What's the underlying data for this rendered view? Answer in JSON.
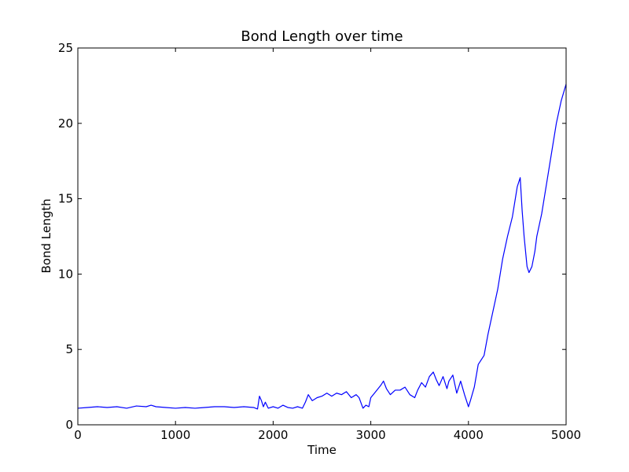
{
  "chart_data": {
    "type": "line",
    "title": "Bond Length over time",
    "xlabel": "Time",
    "ylabel": "Bond Length",
    "xlim": [
      0,
      5000
    ],
    "ylim": [
      0,
      25
    ],
    "xticks": [
      0,
      1000,
      2000,
      3000,
      4000,
      5000
    ],
    "yticks": [
      0,
      5,
      10,
      15,
      20,
      25
    ],
    "grid": false,
    "series": [
      {
        "color": "#0000ff",
        "x": [
          0,
          100,
          200,
          300,
          400,
          500,
          600,
          700,
          750,
          800,
          900,
          1000,
          1100,
          1200,
          1300,
          1400,
          1500,
          1600,
          1700,
          1800,
          1840,
          1860,
          1880,
          1900,
          1920,
          1950,
          2000,
          2050,
          2100,
          2150,
          2200,
          2250,
          2300,
          2330,
          2360,
          2400,
          2450,
          2500,
          2550,
          2600,
          2650,
          2700,
          2750,
          2800,
          2850,
          2880,
          2920,
          2950,
          2980,
          3000,
          3050,
          3100,
          3130,
          3160,
          3200,
          3250,
          3300,
          3350,
          3400,
          3450,
          3480,
          3520,
          3560,
          3600,
          3640,
          3670,
          3700,
          3740,
          3780,
          3800,
          3840,
          3880,
          3920,
          3960,
          4000,
          4020,
          4060,
          4100,
          4130,
          4160,
          4200,
          4250,
          4300,
          4350,
          4400,
          4450,
          4500,
          4530,
          4550,
          4570,
          4600,
          4620,
          4650,
          4680,
          4700,
          4750,
          4800,
          4850,
          4900,
          4950,
          5000
        ],
        "y": [
          1.1,
          1.15,
          1.2,
          1.15,
          1.2,
          1.1,
          1.25,
          1.2,
          1.3,
          1.2,
          1.15,
          1.1,
          1.15,
          1.1,
          1.15,
          1.2,
          1.2,
          1.15,
          1.2,
          1.15,
          1.05,
          1.9,
          1.6,
          1.2,
          1.5,
          1.1,
          1.2,
          1.1,
          1.3,
          1.15,
          1.1,
          1.2,
          1.1,
          1.5,
          2.0,
          1.6,
          1.8,
          1.9,
          2.1,
          1.9,
          2.1,
          2.0,
          2.2,
          1.8,
          2.0,
          1.8,
          1.1,
          1.3,
          1.2,
          1.8,
          2.2,
          2.6,
          2.9,
          2.4,
          2.0,
          2.3,
          2.3,
          2.5,
          2.0,
          1.8,
          2.3,
          2.8,
          2.5,
          3.2,
          3.5,
          3.0,
          2.6,
          3.2,
          2.4,
          2.9,
          3.3,
          2.1,
          2.9,
          2.0,
          1.2,
          1.6,
          2.5,
          4.0,
          4.3,
          4.6,
          6.0,
          7.5,
          9.0,
          11.0,
          12.5,
          13.8,
          15.8,
          16.4,
          14.2,
          12.5,
          10.5,
          10.1,
          10.5,
          11.5,
          12.5,
          14.0,
          16.0,
          18.0,
          20.0,
          21.5,
          22.6
        ]
      }
    ]
  }
}
